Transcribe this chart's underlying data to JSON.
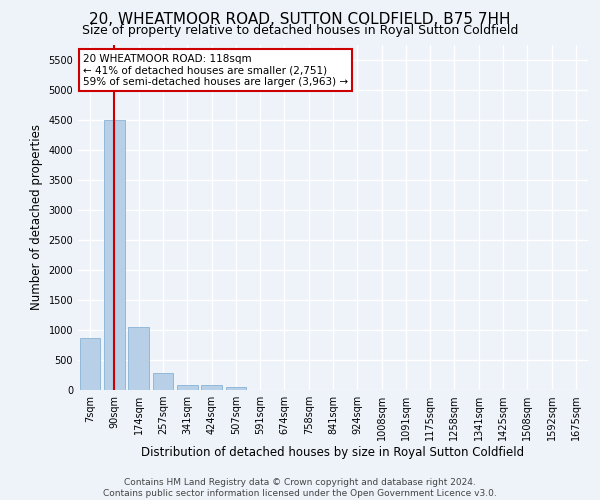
{
  "title": "20, WHEATMOOR ROAD, SUTTON COLDFIELD, B75 7HH",
  "subtitle": "Size of property relative to detached houses in Royal Sutton Coldfield",
  "xlabel": "Distribution of detached houses by size in Royal Sutton Coldfield",
  "ylabel": "Number of detached properties",
  "footer_line1": "Contains HM Land Registry data © Crown copyright and database right 2024.",
  "footer_line2": "Contains public sector information licensed under the Open Government Licence v3.0.",
  "bar_labels": [
    "7sqm",
    "90sqm",
    "174sqm",
    "257sqm",
    "341sqm",
    "424sqm",
    "507sqm",
    "591sqm",
    "674sqm",
    "758sqm",
    "841sqm",
    "924sqm",
    "1008sqm",
    "1091sqm",
    "1175sqm",
    "1258sqm",
    "1341sqm",
    "1425sqm",
    "1508sqm",
    "1592sqm",
    "1675sqm"
  ],
  "bar_values": [
    875,
    4500,
    1050,
    280,
    90,
    80,
    55,
    0,
    0,
    0,
    0,
    0,
    0,
    0,
    0,
    0,
    0,
    0,
    0,
    0,
    0
  ],
  "bar_color": "#b8cfe8",
  "bar_edge_color": "#7aaad0",
  "highlight_bar_index": 1,
  "highlight_color": "#cc0000",
  "annotation_text": "20 WHEATMOOR ROAD: 118sqm\n← 41% of detached houses are smaller (2,751)\n59% of semi-detached houses are larger (3,963) →",
  "annotation_box_color": "#ffffff",
  "annotation_box_edgecolor": "#cc0000",
  "ylim": [
    0,
    5750
  ],
  "yticks": [
    0,
    500,
    1000,
    1500,
    2000,
    2500,
    3000,
    3500,
    4000,
    4500,
    5000,
    5500
  ],
  "bg_color": "#eef3fa",
  "plot_bg_color": "#eef3fa",
  "grid_color": "#ffffff",
  "title_fontsize": 11,
  "subtitle_fontsize": 9,
  "axis_label_fontsize": 8.5,
  "tick_fontsize": 7,
  "footer_fontsize": 6.5
}
